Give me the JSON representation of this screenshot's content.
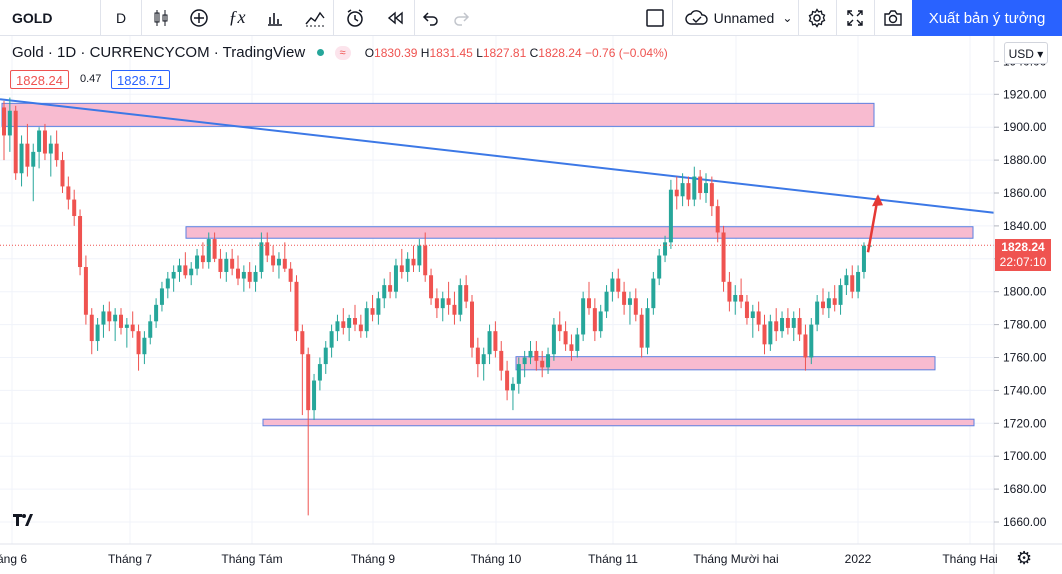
{
  "toolbar": {
    "symbol": "GOLD",
    "interval": "D",
    "layout_name": "Unnamed",
    "publish_label": "Xuất bản ý tưởng"
  },
  "legend": {
    "name": "Gold",
    "interval": "1D",
    "exchange": "CURRENCYCOM",
    "source": "TradingView",
    "wave_icon": "≈",
    "o_label": "O",
    "o": "1830.39",
    "h_label": "H",
    "h": "1831.45",
    "l_label": "L",
    "l": "1827.81",
    "c_label": "C",
    "c": "1828.24",
    "change": "−0.76 (−0.04%)"
  },
  "quote": {
    "sell": "1828.24",
    "spread": "0.47",
    "buy": "1828.71"
  },
  "price_scale": {
    "currency": "USD",
    "currency_selector": "USD ▾",
    "last_price": "1828.24",
    "countdown": "22:07:10",
    "ticks": [
      "1920.00",
      "1900.00",
      "1880.00",
      "1860.00",
      "1840.00",
      "1820.00",
      "1800.00",
      "1780.00",
      "1760.00",
      "1740.00",
      "1720.00",
      "1700.00",
      "1680.00",
      "1660.00"
    ],
    "top_partial": "1940.00"
  },
  "time_axis": [
    "áng 6",
    "Tháng 7",
    "Tháng Tám",
    "Tháng 9",
    "Tháng 10",
    "Tháng 11",
    "Tháng Mười hai",
    "2022",
    "Tháng Hai"
  ],
  "drawings": {
    "zone_color": "#f8bbd0",
    "zone_border": "#5b7fe0",
    "trendline_color": "#3c78e6",
    "arrow_color": "#e53935",
    "zones": [
      {
        "from": 1900.5,
        "to": 1914.5
      },
      {
        "from": 1832.5,
        "to": 1839.5
      },
      {
        "from": 1752.5,
        "to": 1760.5
      },
      {
        "from": 1718.5,
        "to": 1722.5
      }
    ],
    "trendline": {
      "from": 1917.0,
      "to": 1848.0
    },
    "arrow": {
      "from": 1824.0,
      "to": 1858.0
    }
  },
  "colors": {
    "up": "#26a69a",
    "down": "#ef5350",
    "accent": "#2962ff"
  },
  "chart_data": {
    "type": "candlestick",
    "symbol": "GOLD",
    "timeframe": "1D",
    "ylim": [
      1650,
      1945
    ],
    "candles": [
      [
        1912,
        1916,
        1880,
        1895
      ],
      [
        1895,
        1918,
        1885,
        1910
      ],
      [
        1910,
        1913,
        1868,
        1872
      ],
      [
        1872,
        1895,
        1864,
        1890
      ],
      [
        1890,
        1902,
        1870,
        1876
      ],
      [
        1876,
        1890,
        1855,
        1885
      ],
      [
        1885,
        1900,
        1875,
        1898
      ],
      [
        1898,
        1902,
        1880,
        1884
      ],
      [
        1884,
        1895,
        1870,
        1890
      ],
      [
        1890,
        1898,
        1876,
        1880
      ],
      [
        1880,
        1885,
        1860,
        1864
      ],
      [
        1864,
        1870,
        1850,
        1856
      ],
      [
        1856,
        1862,
        1840,
        1846
      ],
      [
        1846,
        1850,
        1810,
        1815
      ],
      [
        1815,
        1822,
        1780,
        1786
      ],
      [
        1786,
        1790,
        1762,
        1770
      ],
      [
        1770,
        1784,
        1764,
        1780
      ],
      [
        1780,
        1792,
        1772,
        1788
      ],
      [
        1788,
        1794,
        1776,
        1782
      ],
      [
        1782,
        1790,
        1770,
        1786
      ],
      [
        1786,
        1790,
        1774,
        1778
      ],
      [
        1778,
        1784,
        1766,
        1780
      ],
      [
        1780,
        1788,
        1772,
        1776
      ],
      [
        1776,
        1780,
        1752,
        1762
      ],
      [
        1762,
        1776,
        1756,
        1772
      ],
      [
        1772,
        1786,
        1768,
        1782
      ],
      [
        1782,
        1796,
        1778,
        1792
      ],
      [
        1792,
        1806,
        1788,
        1802
      ],
      [
        1802,
        1812,
        1796,
        1808
      ],
      [
        1808,
        1816,
        1800,
        1812
      ],
      [
        1812,
        1820,
        1806,
        1816
      ],
      [
        1816,
        1824,
        1808,
        1810
      ],
      [
        1810,
        1818,
        1804,
        1814
      ],
      [
        1814,
        1826,
        1810,
        1822
      ],
      [
        1822,
        1830,
        1814,
        1818
      ],
      [
        1818,
        1836,
        1814,
        1832
      ],
      [
        1832,
        1836,
        1818,
        1820
      ],
      [
        1820,
        1826,
        1808,
        1812
      ],
      [
        1812,
        1824,
        1806,
        1820
      ],
      [
        1820,
        1826,
        1810,
        1814
      ],
      [
        1814,
        1822,
        1804,
        1808
      ],
      [
        1808,
        1816,
        1800,
        1812
      ],
      [
        1812,
        1818,
        1802,
        1806
      ],
      [
        1806,
        1816,
        1800,
        1812
      ],
      [
        1812,
        1836,
        1808,
        1830
      ],
      [
        1830,
        1836,
        1818,
        1822
      ],
      [
        1822,
        1828,
        1812,
        1816
      ],
      [
        1816,
        1824,
        1808,
        1820
      ],
      [
        1820,
        1830,
        1812,
        1814
      ],
      [
        1814,
        1818,
        1800,
        1806
      ],
      [
        1806,
        1810,
        1770,
        1776
      ],
      [
        1776,
        1780,
        1725,
        1762
      ],
      [
        1762,
        1766,
        1664,
        1728
      ],
      [
        1728,
        1750,
        1722,
        1746
      ],
      [
        1746,
        1760,
        1740,
        1756
      ],
      [
        1756,
        1770,
        1750,
        1766
      ],
      [
        1766,
        1780,
        1760,
        1776
      ],
      [
        1776,
        1786,
        1770,
        1782
      ],
      [
        1782,
        1790,
        1774,
        1778
      ],
      [
        1778,
        1786,
        1770,
        1784
      ],
      [
        1784,
        1792,
        1776,
        1780
      ],
      [
        1780,
        1786,
        1772,
        1776
      ],
      [
        1776,
        1794,
        1772,
        1790
      ],
      [
        1790,
        1798,
        1782,
        1786
      ],
      [
        1786,
        1800,
        1780,
        1796
      ],
      [
        1796,
        1808,
        1790,
        1804
      ],
      [
        1804,
        1812,
        1796,
        1800
      ],
      [
        1800,
        1820,
        1796,
        1816
      ],
      [
        1816,
        1826,
        1808,
        1812
      ],
      [
        1812,
        1824,
        1806,
        1820
      ],
      [
        1820,
        1828,
        1812,
        1816
      ],
      [
        1816,
        1832,
        1812,
        1828
      ],
      [
        1828,
        1836,
        1806,
        1810
      ],
      [
        1810,
        1814,
        1792,
        1796
      ],
      [
        1796,
        1802,
        1784,
        1790
      ],
      [
        1790,
        1800,
        1782,
        1796
      ],
      [
        1796,
        1806,
        1786,
        1792
      ],
      [
        1792,
        1800,
        1780,
        1786
      ],
      [
        1786,
        1808,
        1782,
        1804
      ],
      [
        1804,
        1810,
        1790,
        1794
      ],
      [
        1794,
        1798,
        1760,
        1766
      ],
      [
        1766,
        1772,
        1748,
        1756
      ],
      [
        1756,
        1766,
        1746,
        1762
      ],
      [
        1762,
        1780,
        1756,
        1776
      ],
      [
        1776,
        1782,
        1760,
        1764
      ],
      [
        1764,
        1770,
        1746,
        1752
      ],
      [
        1752,
        1758,
        1734,
        1740
      ],
      [
        1740,
        1748,
        1728,
        1744
      ],
      [
        1744,
        1760,
        1738,
        1756
      ],
      [
        1756,
        1764,
        1748,
        1760
      ],
      [
        1760,
        1770,
        1756,
        1764
      ],
      [
        1764,
        1770,
        1752,
        1758
      ],
      [
        1758,
        1764,
        1748,
        1754
      ],
      [
        1754,
        1766,
        1750,
        1762
      ],
      [
        1762,
        1784,
        1758,
        1780
      ],
      [
        1780,
        1788,
        1770,
        1776
      ],
      [
        1776,
        1782,
        1764,
        1768
      ],
      [
        1768,
        1774,
        1758,
        1764
      ],
      [
        1764,
        1778,
        1760,
        1774
      ],
      [
        1774,
        1800,
        1770,
        1796
      ],
      [
        1796,
        1806,
        1786,
        1790
      ],
      [
        1790,
        1796,
        1770,
        1776
      ],
      [
        1776,
        1792,
        1772,
        1788
      ],
      [
        1788,
        1804,
        1784,
        1800
      ],
      [
        1800,
        1812,
        1794,
        1808
      ],
      [
        1808,
        1814,
        1796,
        1800
      ],
      [
        1800,
        1806,
        1786,
        1792
      ],
      [
        1792,
        1800,
        1780,
        1796
      ],
      [
        1796,
        1802,
        1782,
        1786
      ],
      [
        1786,
        1790,
        1760,
        1766
      ],
      [
        1766,
        1796,
        1762,
        1790
      ],
      [
        1790,
        1812,
        1786,
        1808
      ],
      [
        1808,
        1826,
        1804,
        1822
      ],
      [
        1822,
        1834,
        1818,
        1830
      ],
      [
        1830,
        1868,
        1826,
        1862
      ],
      [
        1862,
        1870,
        1850,
        1858
      ],
      [
        1858,
        1872,
        1852,
        1866
      ],
      [
        1866,
        1870,
        1852,
        1856
      ],
      [
        1856,
        1876,
        1852,
        1870
      ],
      [
        1870,
        1874,
        1856,
        1860
      ],
      [
        1860,
        1872,
        1854,
        1866
      ],
      [
        1866,
        1870,
        1846,
        1852
      ],
      [
        1852,
        1856,
        1830,
        1836
      ],
      [
        1836,
        1840,
        1800,
        1806
      ],
      [
        1806,
        1812,
        1788,
        1794
      ],
      [
        1794,
        1804,
        1786,
        1798
      ],
      [
        1798,
        1808,
        1790,
        1794
      ],
      [
        1794,
        1798,
        1780,
        1784
      ],
      [
        1784,
        1792,
        1772,
        1788
      ],
      [
        1788,
        1794,
        1776,
        1780
      ],
      [
        1780,
        1786,
        1762,
        1768
      ],
      [
        1768,
        1786,
        1764,
        1782
      ],
      [
        1782,
        1790,
        1770,
        1776
      ],
      [
        1776,
        1788,
        1772,
        1784
      ],
      [
        1784,
        1790,
        1774,
        1778
      ],
      [
        1778,
        1788,
        1770,
        1784
      ],
      [
        1784,
        1790,
        1770,
        1774
      ],
      [
        1774,
        1780,
        1752,
        1760
      ],
      [
        1760,
        1784,
        1756,
        1780
      ],
      [
        1780,
        1798,
        1776,
        1794
      ],
      [
        1794,
        1802,
        1786,
        1790
      ],
      [
        1790,
        1800,
        1784,
        1796
      ],
      [
        1796,
        1804,
        1788,
        1792
      ],
      [
        1792,
        1808,
        1786,
        1804
      ],
      [
        1804,
        1814,
        1798,
        1810
      ],
      [
        1810,
        1816,
        1796,
        1800
      ],
      [
        1800,
        1816,
        1796,
        1812
      ],
      [
        1812,
        1830,
        1808,
        1828
      ],
      [
        1828,
        1831,
        1827,
        1828
      ]
    ]
  }
}
